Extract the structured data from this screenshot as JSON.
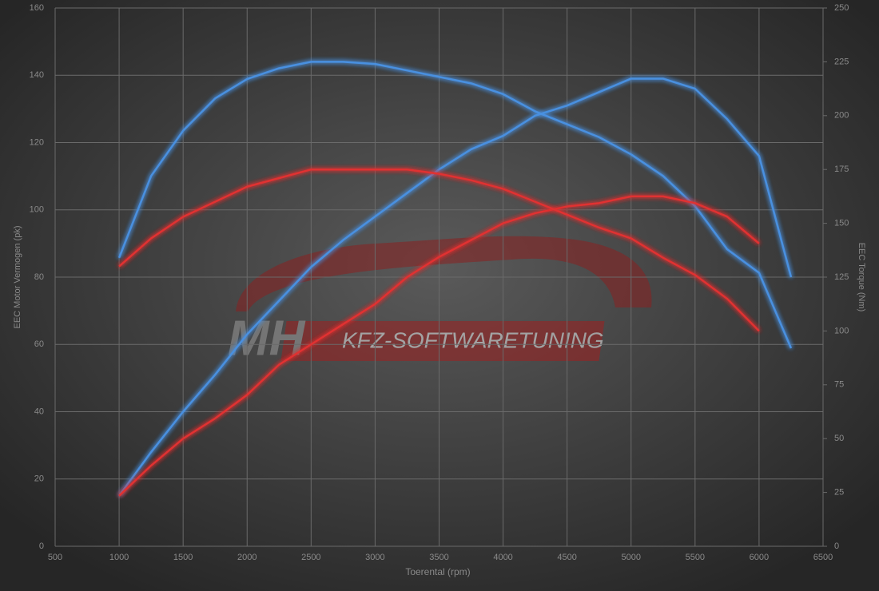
{
  "chart_data": {
    "type": "line",
    "x_label": "Toerental (rpm)",
    "y_label": "EEC Motor Vermogen (pk)",
    "y2_label": "EEC Torque (Nm)",
    "watermark": [
      "MH",
      "KFZ-SOFTWARETUNING"
    ],
    "x": [
      1000,
      1250,
      1500,
      1750,
      2000,
      2250,
      2500,
      2750,
      3000,
      3250,
      3500,
      3750,
      4000,
      4250,
      4500,
      4750,
      5000,
      5250,
      5500,
      5750,
      6000,
      6250
    ],
    "series": [
      {
        "color": "#4a90e0",
        "values": [
          15,
          28,
          40,
          51,
          63,
          73,
          83,
          91,
          98,
          105,
          112,
          118,
          122,
          128,
          131,
          135,
          139,
          139,
          136,
          127,
          116,
          80
        ]
      },
      {
        "color": "#4a90e0",
        "axis": "y2",
        "values": [
          134,
          172,
          193,
          208,
          217,
          222,
          225,
          225,
          224,
          221,
          218,
          215,
          210,
          202,
          196,
          190,
          182,
          172,
          158,
          138,
          127,
          92
        ]
      },
      {
        "color": "#e03030",
        "values": [
          15,
          24,
          32,
          38,
          45,
          54,
          60,
          66,
          72,
          80,
          86,
          91,
          96,
          99,
          101,
          102,
          104,
          104,
          102,
          98,
          90,
          null
        ]
      },
      {
        "color": "#e03030",
        "axis": "y2",
        "values": [
          130,
          143,
          153,
          160,
          167,
          171,
          175,
          175,
          175,
          175,
          173,
          170,
          166,
          160,
          154,
          148,
          143,
          134,
          126,
          115,
          100,
          null
        ]
      }
    ],
    "xlim": [
      500,
      6500
    ],
    "xticks": [
      500,
      1000,
      1500,
      2000,
      2500,
      3000,
      3500,
      4000,
      4500,
      5000,
      5500,
      6000,
      6500
    ],
    "ylim": [
      0,
      160
    ],
    "yticks": [
      0,
      20,
      40,
      60,
      80,
      100,
      120,
      140,
      160
    ],
    "y2lim": [
      0,
      250
    ],
    "y2ticks": [
      0,
      25,
      50,
      75,
      100,
      125,
      150,
      175,
      200,
      225,
      250
    ],
    "grid": true
  }
}
